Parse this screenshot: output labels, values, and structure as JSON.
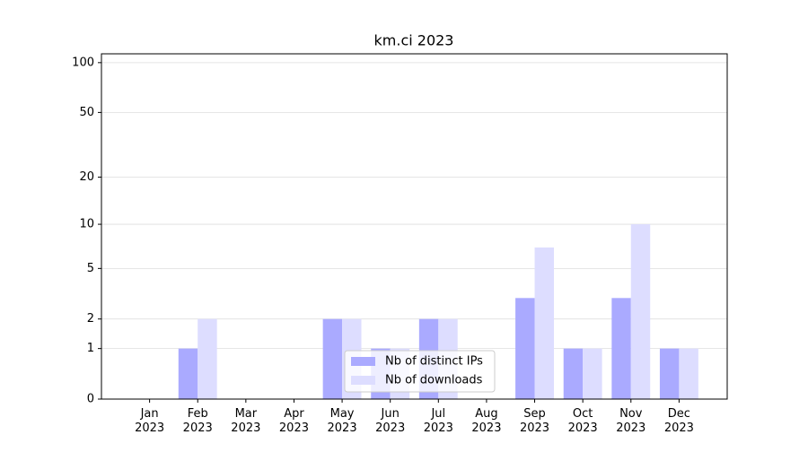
{
  "chart_data": {
    "type": "bar",
    "title": "km.ci 2023",
    "categories": [
      "Jan 2023",
      "Feb 2023",
      "Mar 2023",
      "Apr 2023",
      "May 2023",
      "Jun 2023",
      "Jul 2023",
      "Aug 2023",
      "Sep 2023",
      "Oct 2023",
      "Nov 2023",
      "Dec 2023"
    ],
    "series": [
      {
        "name": "Nb of distinct IPs",
        "color": "#aaaaff",
        "values": [
          0,
          1,
          0,
          0,
          2,
          1,
          2,
          0,
          3,
          1,
          3,
          1
        ]
      },
      {
        "name": "Nb of downloads",
        "color": "#ddddff",
        "values": [
          0,
          2,
          0,
          0,
          2,
          1,
          2,
          0,
          7,
          1,
          10,
          1
        ]
      }
    ],
    "yscale": "log1p",
    "ylim": [
      0,
      113
    ],
    "yticks": [
      0,
      1,
      2,
      5,
      10,
      20,
      50,
      100
    ],
    "grid": true,
    "legend": "lower center"
  }
}
